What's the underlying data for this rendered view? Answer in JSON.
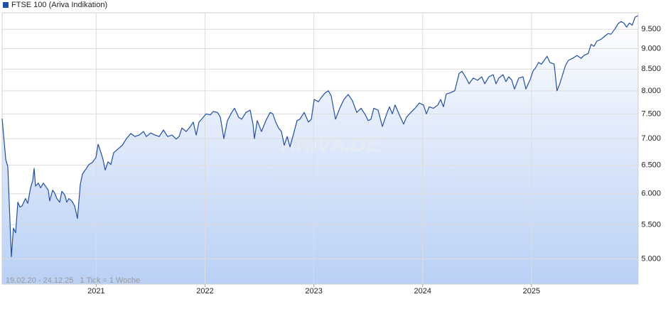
{
  "chart_data": {
    "type": "line",
    "series": [
      {
        "name": "FTSE 100 (Ariva Indikation)",
        "color": "#1f4fa8",
        "values": [
          7400,
          6600,
          6470,
          5030,
          5450,
          5380,
          5860,
          5780,
          5800,
          5920,
          5840,
          6100,
          6220,
          6440,
          6130,
          6180,
          6100,
          6180,
          6130,
          6060,
          5880,
          6060,
          6010,
          5920,
          5860,
          6040,
          5980,
          5860,
          5920,
          5880,
          5800,
          5600,
          6160,
          6340,
          6410,
          6510,
          6550,
          6640,
          6890,
          6730,
          6600,
          6410,
          6560,
          6510,
          6730,
          6800,
          6870,
          7000,
          7100,
          7040,
          7070,
          7140,
          7040,
          7110,
          7070,
          7040,
          7170,
          7040,
          7070,
          6990,
          7040,
          7210,
          7140,
          7240,
          7330,
          7070,
          7330,
          7430,
          7500,
          7480,
          7550,
          7530,
          7430,
          7000,
          7360,
          7530,
          7620,
          7430,
          7390,
          7530,
          7580,
          7290,
          7000,
          7360,
          7140,
          7360,
          7530,
          7500,
          7330,
          7210,
          7140,
          6870,
          7040,
          6840,
          7040,
          7360,
          7390,
          7530,
          7330,
          7390,
          7810,
          7760,
          7890,
          7960,
          8000,
          7890,
          7390,
          7620,
          7810,
          7920,
          7780,
          7530,
          7620,
          7480,
          7360,
          7390,
          7620,
          7580,
          7240,
          7500,
          7650,
          7500,
          7690,
          7480,
          7290,
          7430,
          7530,
          7620,
          7730,
          7690,
          7500,
          7650,
          7620,
          7690,
          7810,
          7650,
          7930,
          7960,
          8000,
          8400,
          8450,
          8290,
          8160,
          8290,
          8240,
          8320,
          8160,
          8320,
          8370,
          8160,
          8290,
          8370,
          8210,
          8320,
          8250,
          8040,
          8290,
          8320,
          8040,
          8250,
          8450,
          8540,
          8660,
          8620,
          8710,
          8810,
          8660,
          8620,
          8000,
          8160,
          8370,
          8590,
          8710,
          8760,
          8830,
          8760,
          8830,
          8880,
          9110,
          9060,
          9190,
          9240,
          9300,
          9390,
          9370,
          9520,
          9650,
          9710,
          9670,
          9560,
          9670,
          9610,
          9830,
          9870
        ]
      }
    ],
    "x": [
      2020.136,
      2020.169,
      2020.188,
      2020.221,
      2020.24,
      2020.26,
      2020.28,
      2020.299,
      2020.319,
      2020.351,
      2020.371,
      2020.397,
      2020.417,
      2020.43,
      2020.443,
      2020.469,
      2020.489,
      2020.515,
      2020.534,
      2020.56,
      2020.573,
      2020.6,
      2020.619,
      2020.639,
      2020.665,
      2020.685,
      2020.711,
      2020.73,
      2020.75,
      2020.776,
      2020.802,
      2020.828,
      2020.854,
      2020.874,
      2020.9,
      2020.933,
      2020.965,
      2020.998,
      2021.018,
      2021.044,
      2021.063,
      2021.083,
      2021.109,
      2021.135,
      2021.161,
      2021.2,
      2021.24,
      2021.279,
      2021.318,
      2021.357,
      2021.396,
      2021.435,
      2021.462,
      2021.501,
      2021.54,
      2021.579,
      2021.618,
      2021.657,
      2021.697,
      2021.736,
      2021.762,
      2021.788,
      2021.827,
      2021.866,
      2021.892,
      2021.919,
      2021.945,
      2021.984,
      2022.01,
      2022.049,
      2022.075,
      2022.115,
      2022.141,
      2022.173,
      2022.206,
      2022.245,
      2022.271,
      2022.31,
      2022.337,
      2022.376,
      2022.415,
      2022.441,
      2022.454,
      2022.48,
      2022.519,
      2022.559,
      2022.598,
      2022.624,
      2022.65,
      2022.676,
      2022.702,
      2022.728,
      2022.755,
      2022.781,
      2022.807,
      2022.846,
      2022.872,
      2022.911,
      2022.95,
      2022.977,
      2023.003,
      2023.042,
      2023.081,
      2023.107,
      2023.133,
      2023.159,
      2023.199,
      2023.238,
      2023.277,
      2023.316,
      2023.355,
      2023.394,
      2023.434,
      2023.473,
      2023.499,
      2023.525,
      2023.551,
      2023.59,
      2023.63,
      2023.669,
      2023.695,
      2023.721,
      2023.747,
      2023.786,
      2023.825,
      2023.851,
      2023.891,
      2023.93,
      2023.969,
      2024.008,
      2024.034,
      2024.06,
      2024.099,
      2024.139,
      2024.165,
      2024.191,
      2024.217,
      2024.256,
      2024.295,
      2024.335,
      2024.361,
      2024.4,
      2024.426,
      2024.465,
      2024.504,
      2024.543,
      2024.57,
      2024.609,
      2024.648,
      2024.674,
      2024.7,
      2024.739,
      2024.765,
      2024.791,
      2024.818,
      2024.844,
      2024.883,
      2024.922,
      2024.948,
      2024.987,
      2025.013,
      2025.039,
      2025.065,
      2025.091,
      2025.117,
      2025.143,
      2025.169,
      2025.208,
      2025.234,
      2025.26,
      2025.286,
      2025.313,
      2025.339,
      2025.378,
      2025.417,
      2025.456,
      2025.482,
      2025.521,
      2025.548,
      2025.574,
      2025.6,
      2025.639,
      2025.665,
      2025.704,
      2025.73,
      2025.769,
      2025.796,
      2025.822,
      2025.848,
      2025.874,
      2025.9,
      2025.926,
      2025.952,
      2025.978
    ],
    "xlim": [
      2020.136,
      2025.98
    ],
    "xticks": [
      2021,
      2022,
      2023,
      2024,
      2025
    ],
    "ylim": [
      4660,
      9950
    ],
    "log_scale": true,
    "yticks": [
      {
        "value": 5000,
        "label": "5.000"
      },
      {
        "value": 5500,
        "label": "5.500"
      },
      {
        "value": 6000,
        "label": "6.000"
      },
      {
        "value": 6500,
        "label": "6.500"
      },
      {
        "value": 7000,
        "label": "7.000"
      },
      {
        "value": 7500,
        "label": "7.500"
      },
      {
        "value": 8000,
        "label": "8.000"
      },
      {
        "value": 8500,
        "label": "8.500"
      },
      {
        "value": 9000,
        "label": "9.000"
      },
      {
        "value": 9500,
        "label": "9.500"
      }
    ],
    "grid": true,
    "area_fill": true,
    "legend_position": "top-left",
    "annotation": "19.02.20 - 24.12.25   1 Tick = 1 Woche",
    "watermark": "ARIVA.DE"
  }
}
